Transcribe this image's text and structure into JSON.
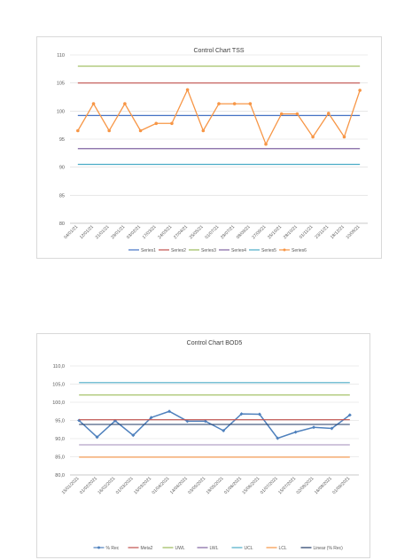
{
  "colors": {
    "series1": "#4472c4",
    "series2": "#c0504d",
    "series3": "#9bbb59",
    "series4": "#8064a2",
    "series5": "#4bacc6",
    "series6": "#f79646",
    "pct_rec": "#4f81bd",
    "meta2": "#c0504d",
    "uwl": "#9bbb59",
    "lwl": "#8064a2",
    "ucl": "#4bacc6",
    "lcl": "#f79646",
    "linear": "#1f3864",
    "grid": "#d9d9d9",
    "axis_text": "#595959"
  },
  "chart_data": [
    {
      "type": "line",
      "title": "Control Chart TSS",
      "xlabel": "",
      "ylabel": "",
      "ylim": [
        80,
        110
      ],
      "yticks": [
        "110",
        "105",
        "100",
        "95",
        "90",
        "85",
        "80"
      ],
      "grid": true,
      "legend_position": "bottom",
      "categories": [
        "04/01/21",
        "12/01/21",
        "21/01/21",
        "29/01/21",
        "03/02/21",
        "17/03/21",
        "24/03/21",
        "27/04/21",
        "25/05/21",
        "01/07/21",
        "29/07/21",
        "08/09/21",
        "27/09/21",
        "25/10/21",
        "28/10/21",
        "01/11/21",
        "23/11/21",
        "18/12/21",
        "10/08/21"
      ],
      "series": [
        {
          "name": "Series1",
          "values": [
            99.2,
            99.2,
            99.2,
            99.2,
            99.2,
            99.2,
            99.2,
            99.2,
            99.2,
            99.2,
            99.2,
            99.2,
            99.2,
            99.2,
            99.2,
            99.2,
            99.2,
            99.2,
            99.2
          ]
        },
        {
          "name": "Series2",
          "values": [
            105,
            105,
            105,
            105,
            105,
            105,
            105,
            105,
            105,
            105,
            105,
            105,
            105,
            105,
            105,
            105,
            105,
            105,
            105
          ]
        },
        {
          "name": "Series3",
          "values": [
            108,
            108,
            108,
            108,
            108,
            108,
            108,
            108,
            108,
            108,
            108,
            108,
            108,
            108,
            108,
            108,
            108,
            108,
            108
          ]
        },
        {
          "name": "Series4",
          "values": [
            93.3,
            93.3,
            93.3,
            93.3,
            93.3,
            93.3,
            93.3,
            93.3,
            93.3,
            93.3,
            93.3,
            93.3,
            93.3,
            93.3,
            93.3,
            93.3,
            93.3,
            93.3,
            93.3
          ]
        },
        {
          "name": "Series5",
          "values": [
            90.5,
            90.5,
            90.5,
            90.5,
            90.5,
            90.5,
            90.5,
            90.5,
            90.5,
            90.5,
            90.5,
            90.5,
            90.5,
            90.5,
            90.5,
            90.5,
            90.5,
            90.5,
            90.5
          ]
        },
        {
          "name": "Series6",
          "values": [
            96.5,
            101.3,
            96.5,
            101.3,
            96.5,
            97.8,
            97.8,
            103.8,
            96.5,
            101.3,
            101.3,
            101.3,
            94.1,
            99.5,
            99.5,
            95.4,
            99.6,
            95.4,
            103.7
          ]
        }
      ]
    },
    {
      "type": "line",
      "title": "Control Chart BOD5",
      "xlabel": "",
      "ylabel": "",
      "ylim": [
        80,
        110
      ],
      "yticks": [
        "110,0",
        "105,0",
        "100,0",
        "95,0",
        "90,0",
        "85,0",
        "80,0"
      ],
      "grid": true,
      "legend_position": "bottom",
      "categories": [
        "15/01/2021",
        "01/02/2021",
        "16/02/2021",
        "01/03/2021",
        "15/03/2021",
        "01/04/2021",
        "14/04/2021",
        "03/05/2021",
        "18/05/2021",
        "01/06/2021",
        "15/06/2021",
        "01/07/2021",
        "15/07/2021",
        "02/08/2021",
        "16/08/2021",
        "01/09/2021"
      ],
      "series": [
        {
          "name": "% Rec",
          "values": [
            95.0,
            90.4,
            94.9,
            90.9,
            95.8,
            97.5,
            94.8,
            94.8,
            92.2,
            96.8,
            96.7,
            90.1,
            91.8,
            93.1,
            92.8,
            96.5
          ]
        },
        {
          "name": "Meta2",
          "values": [
            95.2,
            95.2,
            95.2,
            95.2,
            95.2,
            95.2,
            95.2,
            95.2,
            95.2,
            95.2,
            95.2,
            95.2,
            95.2,
            95.2,
            95.2,
            95.2
          ]
        },
        {
          "name": "UWL",
          "values": [
            102,
            102,
            102,
            102,
            102,
            102,
            102,
            102,
            102,
            102,
            102,
            102,
            102,
            102,
            102,
            102
          ]
        },
        {
          "name": "LWL",
          "values": [
            88.3,
            88.3,
            88.3,
            88.3,
            88.3,
            88.3,
            88.3,
            88.3,
            88.3,
            88.3,
            88.3,
            88.3,
            88.3,
            88.3,
            88.3,
            88.3
          ]
        },
        {
          "name": "UCL",
          "values": [
            105.4,
            105.4,
            105.4,
            105.4,
            105.4,
            105.4,
            105.4,
            105.4,
            105.4,
            105.4,
            105.4,
            105.4,
            105.4,
            105.4,
            105.4,
            105.4
          ]
        },
        {
          "name": "LCL",
          "values": [
            84.9,
            84.9,
            84.9,
            84.9,
            84.9,
            84.9,
            84.9,
            84.9,
            84.9,
            84.9,
            84.9,
            84.9,
            84.9,
            84.9,
            84.9,
            84.9
          ]
        },
        {
          "name": "Linear (% Rec)",
          "values": [
            93.9,
            93.9,
            93.9,
            93.9,
            93.9,
            93.9,
            93.9,
            93.9,
            93.9,
            93.9,
            93.9,
            93.9,
            93.9,
            93.9,
            93.9,
            93.9
          ]
        }
      ]
    }
  ]
}
